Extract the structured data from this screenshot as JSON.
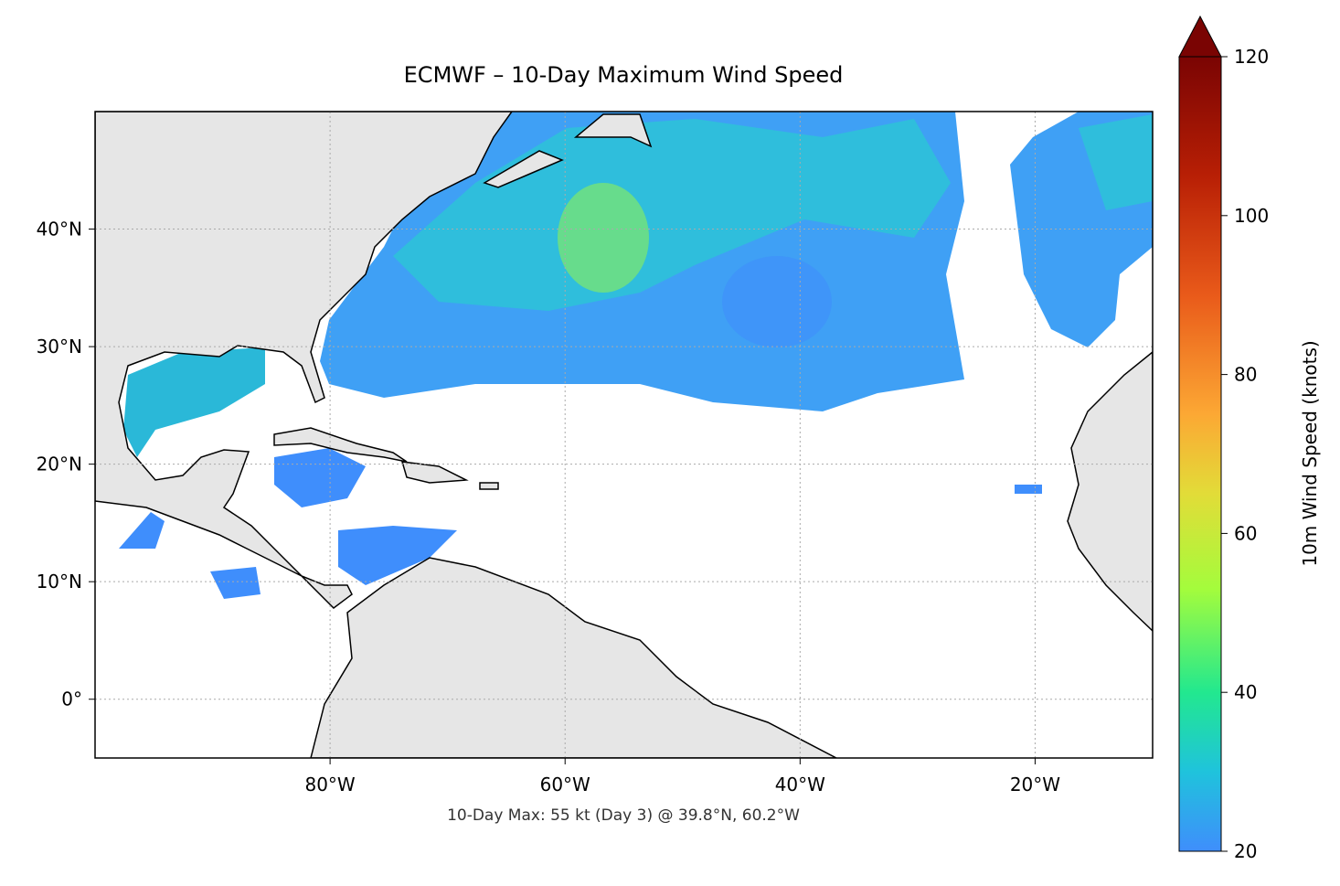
{
  "chart_data": {
    "type": "map",
    "title": "ECMWF – 10-Day Maximum Wind Speed",
    "xlim": [
      -100,
      -10
    ],
    "ylim": [
      -5,
      50
    ],
    "xticks": [
      {
        "value": -80,
        "label": "80°W"
      },
      {
        "value": -60,
        "label": "60°W"
      },
      {
        "value": -40,
        "label": "40°W"
      },
      {
        "value": -20,
        "label": "20°W"
      }
    ],
    "yticks": [
      {
        "value": 0,
        "label": "0°"
      },
      {
        "value": 10,
        "label": "10°N"
      },
      {
        "value": 20,
        "label": "20°N"
      },
      {
        "value": 30,
        "label": "30°N"
      },
      {
        "value": 40,
        "label": "40°N"
      }
    ],
    "grid": true,
    "colorbar": {
      "label": "10m Wind Speed (knots)",
      "lim": [
        20,
        120
      ],
      "ticks": [
        20,
        40,
        60,
        80,
        100,
        120
      ],
      "extend": "max"
    },
    "annotation": "10-Day Max: 55 kt (Day 3) @ 39.8°N, 60.2°W"
  }
}
